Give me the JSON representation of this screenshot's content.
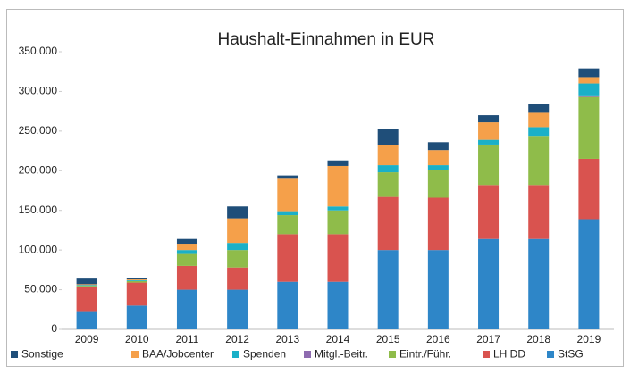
{
  "chart_data": {
    "type": "stacked-bar",
    "title": "Haushalt-Einnahmen in EUR",
    "categories": [
      "2009",
      "2010",
      "2011",
      "2012",
      "2013",
      "2014",
      "2015",
      "2016",
      "2017",
      "2018",
      "2019"
    ],
    "series": [
      {
        "name": "StSG",
        "color": "#2e86c8",
        "values": [
          23000,
          30000,
          50000,
          50000,
          60000,
          60000,
          100000,
          100000,
          114000,
          114000,
          139000
        ]
      },
      {
        "name": "LH DD",
        "color": "#d9534f",
        "values": [
          30000,
          29000,
          30000,
          28000,
          60000,
          60000,
          67000,
          66000,
          68000,
          68000,
          76000
        ]
      },
      {
        "name": "Eintr./Führ.",
        "color": "#8fbc4a",
        "values": [
          2000,
          2000,
          15000,
          22000,
          24000,
          30000,
          31000,
          35000,
          51000,
          62000,
          78000
        ]
      },
      {
        "name": "Mitgl.-Beitr.",
        "color": "#8e6bb0",
        "values": [
          0,
          0,
          0,
          0,
          0,
          0,
          0,
          0,
          0,
          0,
          2000
        ]
      },
      {
        "name": "Spenden",
        "color": "#1ab0c8",
        "values": [
          1000,
          1000,
          5000,
          9000,
          5000,
          5000,
          9000,
          6000,
          6000,
          11000,
          15000
        ]
      },
      {
        "name": "BAA/Jobcenter",
        "color": "#f5a04a",
        "values": [
          1000,
          1000,
          8000,
          31000,
          42000,
          51000,
          25000,
          19000,
          22000,
          18000,
          8000
        ]
      },
      {
        "name": "Sonstige",
        "color": "#1f4e79",
        "values": [
          7000,
          2000,
          6000,
          15000,
          3000,
          7000,
          21000,
          10000,
          9000,
          11000,
          11000
        ]
      }
    ],
    "ylim": [
      0,
      350000
    ],
    "yticks": [
      0,
      {
        "value": 50000,
        "label": "50.000"
      },
      {
        "value": 100000,
        "label": "100.000"
      },
      {
        "value": 150000,
        "label": "150.000"
      },
      {
        "value": 200000,
        "label": "200.000"
      },
      {
        "value": 250000,
        "label": "250.000"
      },
      {
        "value": 300000,
        "label": "300.000"
      },
      {
        "value": 350000,
        "label": "350.000"
      }
    ],
    "legend": "bottom"
  }
}
